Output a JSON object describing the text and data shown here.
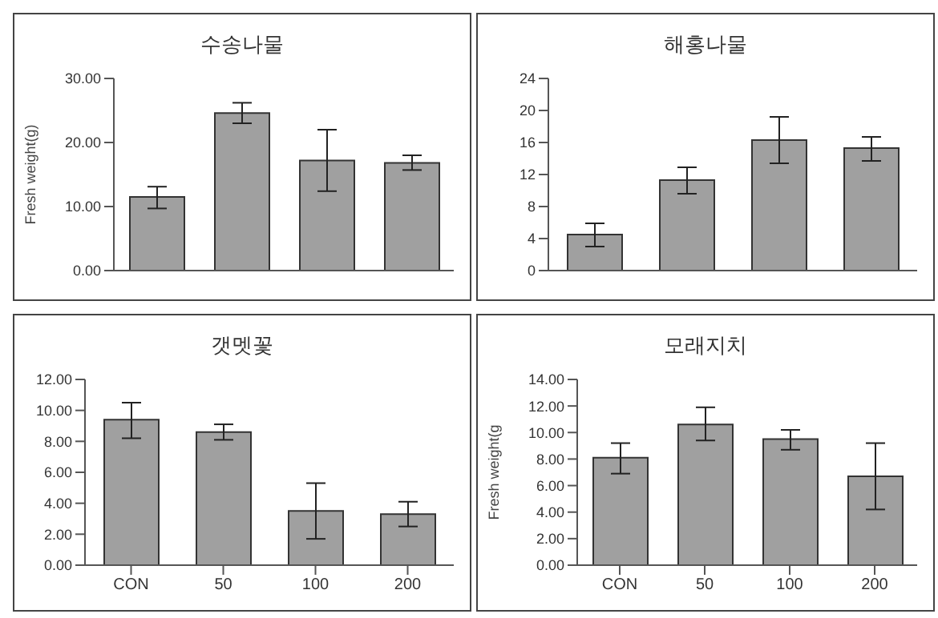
{
  "chart_data": [
    {
      "type": "bar",
      "title": "수송나물",
      "ylabel": "Fresh weight(g)",
      "categories": [
        null,
        null,
        null,
        null
      ],
      "values": [
        11.5,
        24.6,
        17.2,
        16.8
      ],
      "errors": [
        [
          9.7,
          13.1
        ],
        [
          23.0,
          26.2
        ],
        [
          12.4,
          22.0
        ],
        [
          15.7,
          18.0
        ]
      ],
      "color": "#a0a0a0",
      "ylim": [
        0,
        30
      ],
      "yticks": [
        {
          "value": 0,
          "label": "0.00"
        },
        {
          "value": 10,
          "label": "10.00"
        },
        {
          "value": 20,
          "label": "20.00"
        },
        {
          "value": 30,
          "label": "30.00"
        }
      ],
      "grid": false,
      "legend": false
    },
    {
      "type": "bar",
      "title": "해홍나물",
      "categories": [
        null,
        null,
        null,
        null
      ],
      "values": [
        4.5,
        11.3,
        16.3,
        15.3
      ],
      "errors": [
        [
          3.0,
          5.9
        ],
        [
          9.6,
          12.9
        ],
        [
          13.4,
          19.2
        ],
        [
          13.7,
          16.7
        ]
      ],
      "color": "#a0a0a0",
      "ylim": [
        0,
        24
      ],
      "yticks": [
        0,
        4,
        8,
        12,
        16,
        20,
        24
      ],
      "grid": false,
      "legend": false
    },
    {
      "type": "bar",
      "title": "갯멧꽃",
      "categories": [
        "CON",
        "50",
        "100",
        "200"
      ],
      "values": [
        9.4,
        8.6,
        3.5,
        3.3
      ],
      "errors": [
        [
          8.2,
          10.5
        ],
        [
          8.1,
          9.1
        ],
        [
          1.7,
          5.3
        ],
        [
          2.5,
          4.1
        ]
      ],
      "color": "#a0a0a0",
      "ylim": [
        0,
        12
      ],
      "yticks": [
        {
          "value": 0,
          "label": "0.00"
        },
        {
          "value": 2,
          "label": "2.00"
        },
        {
          "value": 4,
          "label": "4.00"
        },
        {
          "value": 6,
          "label": "6.00"
        },
        {
          "value": 8,
          "label": "8.00"
        },
        {
          "value": 10,
          "label": "10.00"
        },
        {
          "value": 12,
          "label": "12.00"
        }
      ],
      "grid": false,
      "legend": false
    },
    {
      "type": "bar",
      "title": "모래지치",
      "ylabel": "Fresh weight(g",
      "categories": [
        "CON",
        "50",
        "100",
        "200"
      ],
      "values": [
        8.1,
        10.6,
        9.5,
        6.7
      ],
      "errors": [
        [
          6.9,
          9.2
        ],
        [
          9.4,
          11.9
        ],
        [
          8.7,
          10.2
        ],
        [
          4.2,
          9.2
        ]
      ],
      "color": "#a0a0a0",
      "ylim": [
        0,
        14
      ],
      "yticks": [
        {
          "value": 0,
          "label": "0.00"
        },
        {
          "value": 2,
          "label": "2.00"
        },
        {
          "value": 4,
          "label": "4.00"
        },
        {
          "value": 6,
          "label": "6.00"
        },
        {
          "value": 8,
          "label": "8.00"
        },
        {
          "value": 10,
          "label": "10.00"
        },
        {
          "value": 12,
          "label": "12.00"
        },
        {
          "value": 14,
          "label": "14.00"
        }
      ],
      "grid": false,
      "legend": false
    }
  ]
}
